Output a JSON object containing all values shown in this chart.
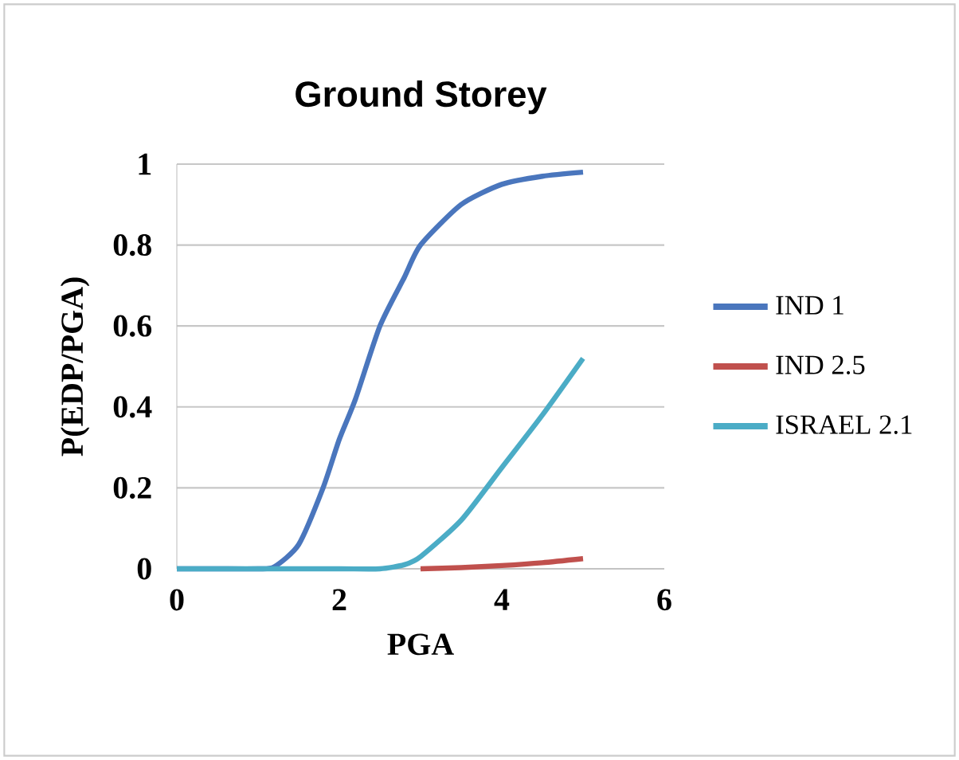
{
  "chart_data": {
    "type": "line",
    "title": "Ground Storey",
    "xlabel": "PGA",
    "ylabel": "P(EDP/PGA)",
    "xlim": [
      0,
      6
    ],
    "xticks": [
      0,
      2,
      4,
      6
    ],
    "ylim": [
      0,
      1
    ],
    "yticks": [
      0,
      0.2,
      0.4,
      0.6,
      0.8,
      1
    ],
    "grid": "y",
    "legend": "right",
    "marker": "none",
    "line_style": "solid",
    "series": [
      {
        "name": "IND 1",
        "color": "#4a76bd",
        "x": [
          0,
          0.5,
          1.0,
          1.2,
          1.5,
          1.8,
          2.0,
          2.2,
          2.5,
          2.8,
          3.0,
          3.5,
          4.0,
          4.5,
          5.0
        ],
        "values": [
          0,
          0,
          0,
          0.005,
          0.06,
          0.2,
          0.32,
          0.42,
          0.6,
          0.72,
          0.8,
          0.9,
          0.95,
          0.97,
          0.98
        ]
      },
      {
        "name": "IND 2.5",
        "color": "#c0504d",
        "x": [
          3.0,
          3.5,
          4.0,
          4.5,
          5.0
        ],
        "values": [
          0,
          0.003,
          0.008,
          0.015,
          0.025
        ]
      },
      {
        "name": "ISRAEL 2.1",
        "color": "#4bacc6",
        "x": [
          0,
          1.0,
          2.0,
          2.5,
          2.8,
          3.0,
          3.5,
          4.0,
          4.5,
          5.0
        ],
        "values": [
          0,
          0,
          0,
          0,
          0.01,
          0.03,
          0.12,
          0.25,
          0.38,
          0.52
        ]
      }
    ]
  }
}
